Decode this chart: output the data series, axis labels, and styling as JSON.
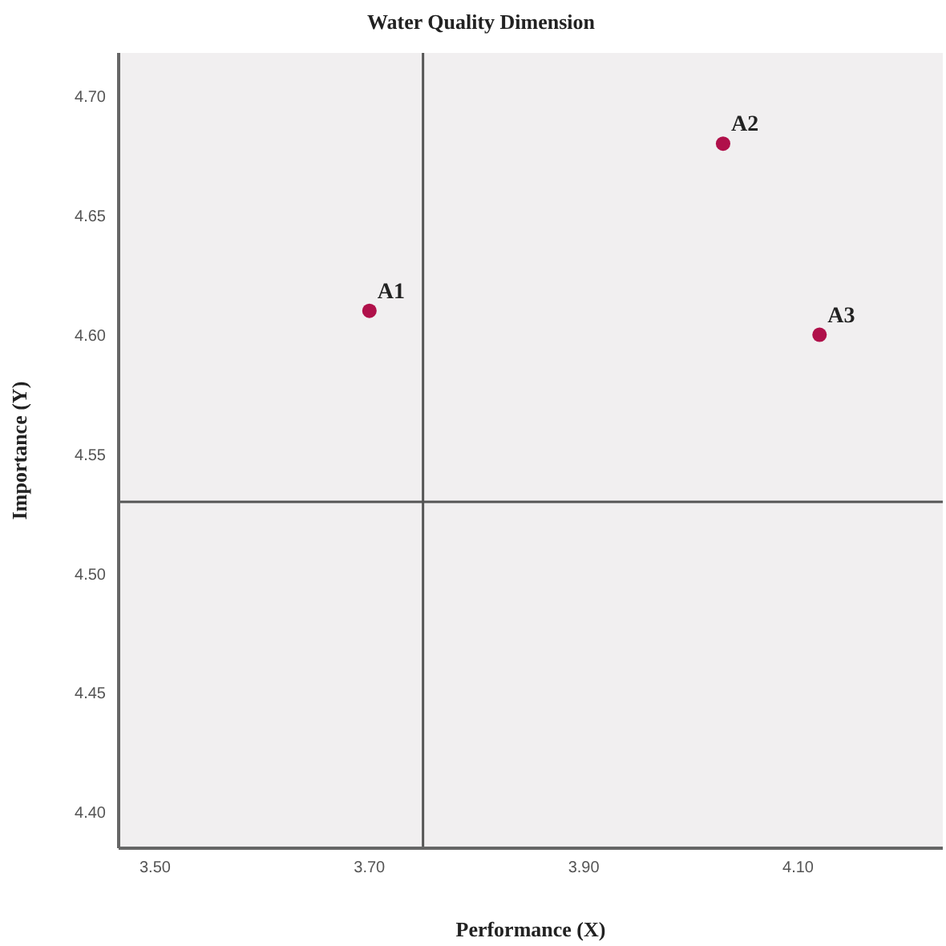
{
  "chart_data": {
    "type": "scatter",
    "title": "Water Quality Dimension",
    "xlabel": "Performance (X)",
    "ylabel": "Importance (Y)",
    "x": [
      3.7,
      4.03,
      4.12
    ],
    "series": [
      {
        "color": "#b0104a",
        "values": [
          4.61,
          4.68,
          4.6
        ]
      }
    ],
    "xlim": [
      3.466,
      4.235
    ],
    "xticks": [
      {
        "value": 3.5,
        "label": "3.50"
      },
      {
        "value": 3.7,
        "label": "3.70"
      },
      {
        "value": 3.9,
        "label": "3.90"
      },
      {
        "value": 4.1,
        "label": "4.10"
      }
    ],
    "ylim": [
      4.385,
      4.718
    ],
    "yticks": [
      {
        "value": 4.4,
        "label": "4.40"
      },
      {
        "value": 4.45,
        "label": "4.45"
      },
      {
        "value": 4.5,
        "label": "4.50"
      },
      {
        "value": 4.55,
        "label": "4.55"
      },
      {
        "value": 4.6,
        "label": "4.60"
      },
      {
        "value": 4.65,
        "label": "4.65"
      },
      {
        "value": 4.7,
        "label": "4.70"
      }
    ],
    "ref_lines": [
      {
        "axis": "x",
        "value": 3.75,
        "color": "#555555"
      },
      {
        "axis": "y",
        "value": 4.53,
        "color": "#555555"
      }
    ],
    "annotations": [
      {
        "text": "A1",
        "x": 3.7,
        "y": 4.61
      },
      {
        "text": "A2",
        "x": 4.03,
        "y": 4.68
      },
      {
        "text": "A3",
        "x": 4.12,
        "y": 4.6
      }
    ],
    "marker": "circle",
    "grid": false
  }
}
